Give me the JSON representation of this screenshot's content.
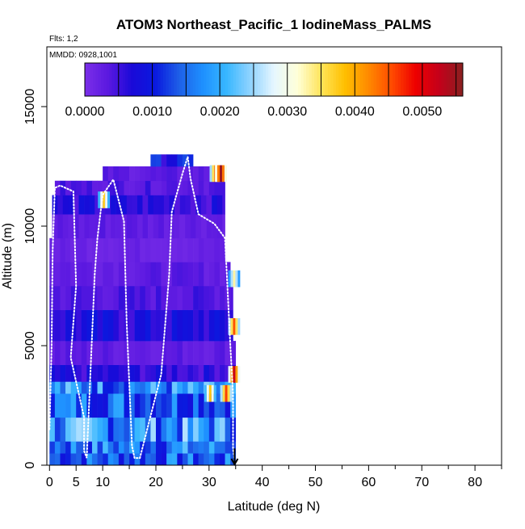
{
  "chart_data": {
    "type": "heatmap",
    "title": "ATOM3 Northeast_Pacific_1 IodineMass_PALMS",
    "flights_note": "Flts: 1,2",
    "date_note": "MMDD: 0928,1001",
    "xlabel": "Latitude (deg N)",
    "ylabel": "Altitude (m)",
    "xlim": [
      -0.5,
      85
    ],
    "ylim": [
      0,
      17500
    ],
    "x_ticks": [
      0,
      5,
      10,
      20,
      30,
      40,
      50,
      60,
      70,
      80
    ],
    "x_minor_ticks": [
      15,
      25,
      35,
      45,
      55,
      65,
      75,
      85
    ],
    "y_ticks": [
      0,
      5000,
      10000,
      15000
    ],
    "colorbar": {
      "min": 0,
      "max": 0.0056,
      "tick_values": [
        0.0,
        0.001,
        0.002,
        0.003,
        0.004,
        0.005
      ],
      "tick_labels": [
        "0.0000",
        "0.0010",
        "0.0020",
        "0.0030",
        "0.0040",
        "0.0050"
      ],
      "stops": [
        "#7b2fe8",
        "#5a18e0",
        "#1a0ad8",
        "#0a1adf",
        "#1e60e8",
        "#1e90ff",
        "#38b7ff",
        "#8fd3ff",
        "#e6f6ff",
        "#ffffd8",
        "#ffe45a",
        "#ffc000",
        "#ff8a00",
        "#ff4a00",
        "#ee0000",
        "#c4001a",
        "#8a2020"
      ]
    },
    "altitude_bands": [
      {
        "y0": 0,
        "y1": 500,
        "x0": 0,
        "x1": 35,
        "value": 0.0014
      },
      {
        "y0": 500,
        "y1": 1000,
        "x0": 0,
        "x1": 35,
        "value": 0.0016
      },
      {
        "y0": 1000,
        "y1": 2000,
        "x0": 0,
        "x1": 35,
        "value": 0.0018
      },
      {
        "y0": 2000,
        "y1": 3000,
        "x0": 0,
        "x1": 35,
        "value": 0.0015
      },
      {
        "y0": 3000,
        "y1": 3500,
        "x0": 0,
        "x1": 35,
        "value": 0.0017
      },
      {
        "y0": 3500,
        "y1": 4200,
        "x0": 0,
        "x1": 35,
        "value": 0.0006
      },
      {
        "y0": 4200,
        "y1": 5200,
        "x0": 0,
        "x1": 35,
        "value": 0.0003
      },
      {
        "y0": 5200,
        "y1": 6500,
        "x0": 0,
        "x1": 34.5,
        "value": 0.0007
      },
      {
        "y0": 6500,
        "y1": 7500,
        "x0": 0,
        "x1": 34.5,
        "value": 0.0004
      },
      {
        "y0": 7500,
        "y1": 8500,
        "x0": 0,
        "x1": 34,
        "value": 0.0003
      },
      {
        "y0": 8500,
        "y1": 9500,
        "x0": 0,
        "x1": 33,
        "value": 0.0002
      },
      {
        "y0": 9500,
        "y1": 10500,
        "x0": 0.5,
        "x1": 33,
        "value": 0.0003
      },
      {
        "y0": 10500,
        "y1": 11300,
        "x0": 0.5,
        "x1": 33,
        "value": 0.0006
      },
      {
        "y0": 11300,
        "y1": 11900,
        "x0": 1,
        "x1": 33,
        "value": 0.0004
      },
      {
        "y0": 11900,
        "y1": 12500,
        "x0": 10,
        "x1": 33,
        "value": 0.0003
      },
      {
        "y0": 12500,
        "y1": 13000,
        "x0": 19,
        "x1": 27,
        "value": 0.0009
      }
    ],
    "high_value_patches": [
      {
        "lat": 30,
        "alt": 3000,
        "value": 0.0038
      },
      {
        "lat": 33,
        "alt": 3000,
        "value": 0.0046
      },
      {
        "lat": 34.5,
        "alt": 3800,
        "value": 0.0052
      },
      {
        "lat": 34.5,
        "alt": 5800,
        "value": 0.0045
      },
      {
        "lat": 34.5,
        "alt": 7800,
        "value": 0.0033
      },
      {
        "lat": 31,
        "alt": 12200,
        "value": 0.0045
      },
      {
        "lat": 32,
        "alt": 12200,
        "value": 0.0055
      },
      {
        "lat": 10,
        "alt": 11100,
        "value": 0.0037
      }
    ],
    "flight_track": [
      [
        0,
        1500
      ],
      [
        0.4,
        5000
      ],
      [
        0.6,
        9000
      ],
      [
        1,
        11600
      ],
      [
        2,
        11700
      ],
      [
        4.5,
        11450
      ],
      [
        5,
        7500
      ],
      [
        4,
        4500
      ],
      [
        6.5,
        2000
      ],
      [
        6.5,
        600
      ],
      [
        7,
        300
      ],
      [
        8.5,
        8000
      ],
      [
        9,
        9500
      ],
      [
        10,
        11300
      ],
      [
        12,
        11950
      ],
      [
        14,
        10200
      ],
      [
        14.5,
        6000
      ],
      [
        15.5,
        800
      ],
      [
        16,
        300
      ],
      [
        17,
        300
      ],
      [
        21,
        3800
      ],
      [
        22.5,
        8000
      ],
      [
        23,
        10600
      ],
      [
        25,
        12200
      ],
      [
        26,
        12900
      ],
      [
        26.5,
        12000
      ],
      [
        28,
        10500
      ],
      [
        31,
        10100
      ],
      [
        33,
        9500
      ],
      [
        34,
        5000
      ],
      [
        34.5,
        3000
      ],
      [
        34.5,
        700
      ],
      [
        34.8,
        200
      ]
    ],
    "final_position_arrow": {
      "lat": 34.8,
      "alt_from": 700,
      "alt_to": 0
    }
  }
}
